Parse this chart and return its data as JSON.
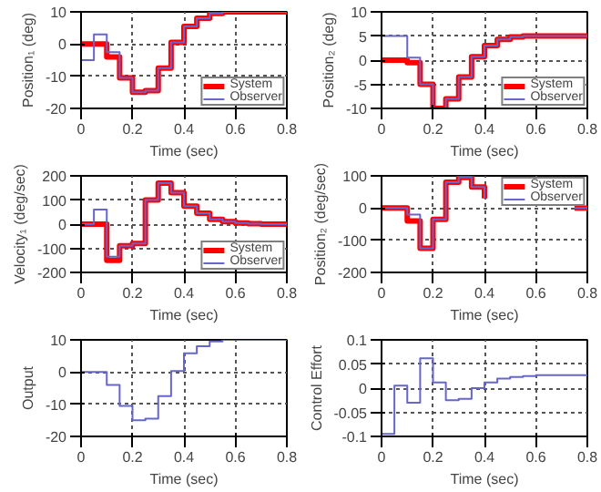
{
  "chart_data": [
    {
      "type": "step",
      "xlabel": "Time (sec)",
      "ylabel": "Position₁ (deg)",
      "x": [
        0,
        0.05,
        0.1,
        0.15,
        0.2,
        0.25,
        0.3,
        0.35,
        0.4,
        0.45,
        0.5,
        0.55,
        0.6,
        0.65,
        0.7,
        0.75,
        0.8
      ],
      "xlim": [
        0,
        0.8
      ],
      "xticks": [
        0,
        0.2,
        0.4,
        0.6,
        0.8
      ],
      "ylim": [
        -20,
        10
      ],
      "yticks": [
        -20,
        -10,
        0,
        10
      ],
      "grid": true,
      "legend": "bottom right",
      "series": [
        {
          "name": "System",
          "color": "#ff0000",
          "values": [
            0,
            0,
            -4,
            -10.5,
            -15,
            -14.5,
            -7.5,
            0.5,
            5.5,
            8,
            9.5,
            10,
            10,
            10,
            10,
            10,
            10
          ]
        },
        {
          "name": "Observer",
          "color": "#6666cc",
          "values": [
            -5,
            3,
            -2.5,
            -10.5,
            -15,
            -14.5,
            -7.5,
            0.5,
            5.5,
            8,
            9.5,
            10,
            10,
            10,
            10,
            10,
            10
          ]
        }
      ]
    },
    {
      "type": "step",
      "xlabel": "Time (sec)",
      "ylabel": "Position₂ (deg)",
      "x": [
        0,
        0.05,
        0.1,
        0.15,
        0.2,
        0.25,
        0.3,
        0.35,
        0.4,
        0.45,
        0.5,
        0.55,
        0.6,
        0.65,
        0.7,
        0.75,
        0.8
      ],
      "xlim": [
        0,
        0.8
      ],
      "xticks": [
        0,
        0.2,
        0.4,
        0.6,
        0.8
      ],
      "ylim": [
        -10,
        10
      ],
      "yticks": [
        -10,
        -5,
        0,
        5,
        10
      ],
      "grid": true,
      "legend": "bottom right",
      "series": [
        {
          "name": "System",
          "color": "#ff0000",
          "values": [
            0,
            0,
            -0.5,
            -5,
            -10,
            -8,
            -3.5,
            0.7,
            3,
            4.3,
            4.8,
            5,
            5,
            5,
            5,
            5,
            5
          ]
        },
        {
          "name": "Observer",
          "color": "#6666cc",
          "values": [
            5,
            5,
            0.5,
            -5,
            -10,
            -8,
            -3.5,
            0.7,
            3,
            4.3,
            4.8,
            5,
            5,
            5,
            5,
            5,
            5
          ]
        }
      ]
    },
    {
      "type": "step",
      "xlabel": "Time (sec)",
      "ylabel": "Velocity₁ (deg/sec)",
      "x": [
        0,
        0.05,
        0.1,
        0.15,
        0.2,
        0.25,
        0.3,
        0.35,
        0.4,
        0.45,
        0.5,
        0.55,
        0.6,
        0.65,
        0.7,
        0.75,
        0.8
      ],
      "xlim": [
        0,
        0.8
      ],
      "xticks": [
        0,
        0.2,
        0.4,
        0.6,
        0.8
      ],
      "ylim": [
        -200,
        200
      ],
      "yticks": [
        -200,
        -100,
        0,
        100,
        200
      ],
      "grid": true,
      "legend": "bottom right",
      "series": [
        {
          "name": "System",
          "color": "#ff0000",
          "values": [
            0,
            0,
            -150,
            -90,
            -80,
            100,
            170,
            130,
            75,
            45,
            20,
            10,
            5,
            2,
            0,
            0,
            0
          ]
        },
        {
          "name": "Observer",
          "color": "#6666cc",
          "values": [
            0,
            60,
            -135,
            -90,
            -80,
            100,
            170,
            130,
            75,
            45,
            20,
            10,
            5,
            2,
            0,
            0,
            0
          ]
        }
      ]
    },
    {
      "type": "step",
      "xlabel": "Time (sec)",
      "ylabel": "Position₂ (deg/sec)",
      "x": [
        0,
        0.05,
        0.1,
        0.15,
        0.2,
        0.25,
        0.3,
        0.35,
        0.4,
        0.45,
        0.5,
        0.55,
        0.6,
        0.65,
        0.7,
        0.75,
        0.8
      ],
      "xlim": [
        0,
        0.8
      ],
      "xticks": [
        0,
        0.2,
        0.4,
        0.6,
        0.8
      ],
      "ylim": [
        -200,
        100
      ],
      "yticks": [
        -200,
        -100,
        0,
        100
      ],
      "grid": true,
      "legend": "top right",
      "series": [
        {
          "name": "System",
          "color": "#ff0000",
          "values": [
            0,
            0,
            -40,
            -125,
            -35,
            80,
            95,
            65,
            30,
            null,
            null,
            null,
            null,
            null,
            null,
            0,
            0
          ]
        },
        {
          "name": "Observer",
          "color": "#6666cc",
          "values": [
            0,
            0,
            -20,
            -125,
            -35,
            80,
            95,
            65,
            30,
            null,
            null,
            null,
            null,
            null,
            null,
            0,
            0
          ]
        }
      ]
    },
    {
      "type": "step",
      "xlabel": "Time (sec)",
      "ylabel": "Output",
      "x": [
        0,
        0.05,
        0.1,
        0.15,
        0.2,
        0.25,
        0.3,
        0.35,
        0.4,
        0.45,
        0.5,
        0.55,
        0.6,
        0.65,
        0.7,
        0.75,
        0.8
      ],
      "xlim": [
        0,
        0.8
      ],
      "xticks": [
        0,
        0.2,
        0.4,
        0.6,
        0.8
      ],
      "ylim": [
        -20,
        10
      ],
      "yticks": [
        -20,
        -10,
        0,
        10
      ],
      "grid": true,
      "series": [
        {
          "color": "#6666cc",
          "values": [
            0,
            0,
            -4,
            -10.5,
            -15,
            -14.5,
            -7.5,
            0.3,
            5.8,
            8,
            9.5,
            10,
            10,
            10,
            10,
            10,
            10
          ]
        }
      ]
    },
    {
      "type": "step",
      "xlabel": "Time (sec)",
      "ylabel": "Control Effort",
      "x": [
        0,
        0.05,
        0.1,
        0.15,
        0.2,
        0.25,
        0.3,
        0.35,
        0.4,
        0.45,
        0.5,
        0.55,
        0.6,
        0.65,
        0.7,
        0.75,
        0.8
      ],
      "xlim": [
        0,
        0.8
      ],
      "xticks": [
        0,
        0.2,
        0.4,
        0.6,
        0.8
      ],
      "ylim": [
        -0.1,
        0.1
      ],
      "yticks": [
        -0.1,
        -0.05,
        0,
        0.05,
        0.1
      ],
      "grid": true,
      "series": [
        {
          "color": "#6666cc",
          "values": [
            -0.095,
            0.005,
            -0.03,
            0.062,
            0.012,
            -0.025,
            -0.022,
            0,
            0.012,
            0.02,
            0.023,
            0.025,
            0.027,
            0.027,
            0.027,
            0.027,
            0.027
          ]
        }
      ]
    }
  ]
}
